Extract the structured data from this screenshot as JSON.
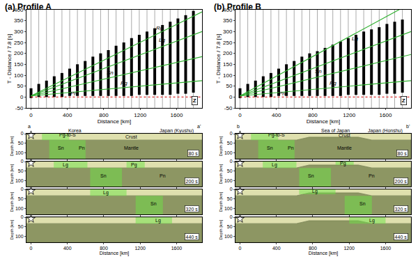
{
  "chart_data": [
    {
      "type": "record_section",
      "title": "(a) Profile A",
      "x_label": "Distance [km]",
      "y_label": "T - Distance / 7.8 [s]",
      "xlim": [
        -50,
        1880
      ],
      "xticks": [
        0,
        400,
        800,
        1200,
        1600
      ],
      "ylim": [
        -50,
        400
      ],
      "yticks": [
        -50,
        0,
        50,
        100,
        150,
        200,
        250,
        300,
        350,
        400
      ],
      "component": "Z",
      "traces": {
        "x": [
          0,
          85,
          170,
          255,
          340,
          425,
          510,
          595,
          680,
          765,
          850,
          935,
          1020,
          1105,
          1190,
          1275,
          1360,
          1445,
          1530,
          1615,
          1700,
          1785
        ],
        "onset": [
          -5,
          0,
          0,
          0,
          0,
          5,
          5,
          5,
          5,
          5,
          5,
          5,
          5,
          5,
          10,
          10,
          10,
          10,
          10,
          15,
          15,
          20
        ],
        "end": [
          40,
          60,
          75,
          95,
          110,
          130,
          150,
          165,
          185,
          200,
          215,
          235,
          250,
          270,
          285,
          300,
          315,
          330,
          345,
          360,
          375,
          395
        ]
      },
      "phase_lines": [
        {
          "x": [
            0,
            1880
          ],
          "y": [
            5,
            390
          ],
          "color": "#33b233",
          "line_style": "solid"
        },
        {
          "x": [
            0,
            1880
          ],
          "y": [
            5,
            300
          ],
          "color": "#33b233",
          "line_style": "solid"
        },
        {
          "x": [
            0,
            1880
          ],
          "y": [
            5,
            185
          ],
          "color": "#33b233",
          "line_style": "solid"
        },
        {
          "x": [
            0,
            1880
          ],
          "y": [
            5,
            75
          ],
          "color": "#33b233",
          "line_style": "solid"
        },
        {
          "x": [
            0,
            1880
          ],
          "y": [
            0,
            0
          ],
          "color": "#e03030",
          "line_style": "dot"
        }
      ],
      "labels": [
        {
          "text": "Rg",
          "x": 1420,
          "y": 315
        },
        {
          "text": "Lg",
          "x": 1440,
          "y": 262
        },
        {
          "text": "Sn",
          "x": 870,
          "y": 110
        },
        {
          "text": "Pg",
          "x": 1020,
          "y": 62
        },
        {
          "text": "Pn",
          "x": 470,
          "y": 14
        }
      ]
    },
    {
      "type": "record_section",
      "title": "(b) Profile B",
      "x_label": "Distance [km]",
      "y_label": "T - Distance / 7.8 [s]",
      "xlim": [
        -50,
        1880
      ],
      "xticks": [
        0,
        400,
        800,
        1200,
        1600
      ],
      "ylim": [
        -50,
        400
      ],
      "yticks": [
        -50,
        0,
        50,
        100,
        150,
        200,
        250,
        300,
        350,
        400
      ],
      "component": "Z",
      "traces": {
        "x": [
          0,
          85,
          170,
          255,
          340,
          425,
          510,
          595,
          680,
          765,
          850,
          935,
          1020,
          1105,
          1190,
          1275,
          1360,
          1445,
          1530,
          1615,
          1700,
          1785
        ],
        "onset": [
          -5,
          0,
          0,
          0,
          0,
          5,
          5,
          5,
          5,
          5,
          5,
          5,
          5,
          5,
          10,
          10,
          10,
          10,
          10,
          15,
          15,
          20
        ],
        "end": [
          40,
          60,
          75,
          95,
          110,
          130,
          150,
          165,
          185,
          200,
          210,
          225,
          240,
          255,
          270,
          285,
          300,
          310,
          320,
          335,
          345,
          355
        ]
      },
      "phase_lines": [
        {
          "x": [
            0,
            1880
          ],
          "y": [
            5,
            430
          ],
          "color": "#33b233",
          "line_style": "solid"
        },
        {
          "x": [
            0,
            1880
          ],
          "y": [
            5,
            300
          ],
          "color": "#33b233",
          "line_style": "solid"
        },
        {
          "x": [
            0,
            1880
          ],
          "y": [
            5,
            195
          ],
          "color": "#33b233",
          "line_style": "solid"
        },
        {
          "x": [
            0,
            1880
          ],
          "y": [
            5,
            75
          ],
          "color": "#33b233",
          "line_style": "solid"
        },
        {
          "x": [
            0,
            1880
          ],
          "y": [
            0,
            0
          ],
          "color": "#e03030",
          "line_style": "dot"
        }
      ],
      "labels": [
        {
          "text": "Lg",
          "x": 1260,
          "y": 268
        },
        {
          "text": "Sn",
          "x": 860,
          "y": 118
        },
        {
          "text": "Pg",
          "x": 1020,
          "y": 62
        },
        {
          "text": "Pn",
          "x": 460,
          "y": 14
        }
      ]
    },
    {
      "type": "snapshots",
      "profile_ends": [
        "a",
        "a'"
      ],
      "places": [
        {
          "text": "Korea",
          "x": 480
        },
        {
          "text": "Japan (Kyushu)",
          "x": 1600
        }
      ],
      "x_label": "Distance [km]",
      "y_label": "Depth [km]",
      "xlim": [
        -50,
        1880
      ],
      "xticks": [
        0,
        400,
        800,
        1200,
        1600
      ],
      "ylim": [
        130,
        0
      ],
      "yticks": [
        0,
        50,
        100
      ],
      "moho": {
        "x": [
          -50,
          1880
        ],
        "depth": [
          33,
          33
        ]
      },
      "source": {
        "x": 0,
        "depth": 8
      },
      "frames": [
        {
          "time": "80 s",
          "energy": [
            {
              "x": [
                120,
                420
              ],
              "depth": [
                0,
                33
              ]
            },
            {
              "x": [
                200,
                600
              ],
              "depth": [
                33,
                130
              ]
            }
          ],
          "labels": [
            {
              "text": "Pg-to-S",
              "x": 400,
              "depth": 9
            },
            {
              "text": "Sn",
              "x": 330,
              "depth": 75
            },
            {
              "text": "Pn",
              "x": 560,
              "depth": 75
            },
            {
              "text": "Crust",
              "x": 1100,
              "depth": 17
            },
            {
              "text": "Mantle",
              "x": 1100,
              "depth": 75
            }
          ]
        },
        {
          "time": "200 s",
          "energy": [
            {
              "x": [
                250,
                620
              ],
              "depth": [
                0,
                33
              ]
            },
            {
              "x": [
                650,
                1000
              ],
              "depth": [
                33,
                130
              ]
            },
            {
              "x": [
                1050,
                1250
              ],
              "depth": [
                0,
                33
              ]
            }
          ],
          "labels": [
            {
              "text": "Lg",
              "x": 380,
              "depth": 17
            },
            {
              "text": "Sn",
              "x": 800,
              "depth": 75
            },
            {
              "text": "Pg",
              "x": 1130,
              "depth": 17
            },
            {
              "text": "Pn",
              "x": 1450,
              "depth": 75
            }
          ]
        },
        {
          "time": "320 s",
          "energy": [
            {
              "x": [
                650,
                1050
              ],
              "depth": [
                0,
                33
              ]
            },
            {
              "x": [
                1150,
                1450
              ],
              "depth": [
                33,
                130
              ]
            }
          ],
          "labels": [
            {
              "text": "Lg",
              "x": 820,
              "depth": 17
            },
            {
              "text": "Sn",
              "x": 1350,
              "depth": 75
            }
          ]
        },
        {
          "time": "440 s",
          "energy": [
            {
              "x": [
                1150,
                1550
              ],
              "depth": [
                0,
                33
              ]
            }
          ],
          "labels": [
            {
              "text": "Lg",
              "x": 1400,
              "depth": 17
            }
          ]
        }
      ]
    },
    {
      "type": "snapshots",
      "profile_ends": [
        "b",
        "b'"
      ],
      "places": [
        {
          "text": "Sea of Japan",
          "x": 1050
        },
        {
          "text": "Japan (Honshu)",
          "x": 1600
        }
      ],
      "x_label": "Distance [km]",
      "y_label": "Depth [km]",
      "xlim": [
        -50,
        1880
      ],
      "xticks": [
        0,
        400,
        800,
        1200,
        1600
      ],
      "ylim": [
        130,
        0
      ],
      "yticks": [
        0,
        50,
        100
      ],
      "moho": {
        "x": [
          -50,
          620,
          760,
          1300,
          1450,
          1880
        ],
        "depth": [
          33,
          33,
          18,
          18,
          33,
          33
        ]
      },
      "source": {
        "x": 0,
        "depth": 8
      },
      "frames": [
        {
          "time": "80 s",
          "energy": [
            {
              "x": [
                120,
                420
              ],
              "depth": [
                0,
                33
              ]
            },
            {
              "x": [
                200,
                600
              ],
              "depth": [
                33,
                130
              ]
            }
          ],
          "labels": [
            {
              "text": "Pg-to-S",
              "x": 400,
              "depth": 9
            },
            {
              "text": "Sn",
              "x": 330,
              "depth": 75
            },
            {
              "text": "Pn",
              "x": 560,
              "depth": 75
            },
            {
              "text": "Crust",
              "x": 1150,
              "depth": 10
            },
            {
              "text": "Mantle",
              "x": 1150,
              "depth": 75
            }
          ]
        },
        {
          "time": "200 s",
          "energy": [
            {
              "x": [
                250,
                620
              ],
              "depth": [
                0,
                33
              ]
            },
            {
              "x": [
                650,
                1000
              ],
              "depth": [
                33,
                130
              ]
            },
            {
              "x": [
                1050,
                1250
              ],
              "depth": [
                0,
                18
              ]
            }
          ],
          "labels": [
            {
              "text": "Lg",
              "x": 380,
              "depth": 17
            },
            {
              "text": "Sn",
              "x": 780,
              "depth": 75
            },
            {
              "text": "Pg",
              "x": 1130,
              "depth": 10
            },
            {
              "text": "Pn",
              "x": 1450,
              "depth": 75
            }
          ]
        },
        {
          "time": "320 s",
          "energy": [
            {
              "x": [
                650,
                1050
              ],
              "depth": [
                0,
                25
              ]
            },
            {
              "x": [
                1150,
                1450
              ],
              "depth": [
                33,
                130
              ]
            }
          ],
          "labels": [
            {
              "text": "Lg",
              "x": 820,
              "depth": 12
            },
            {
              "text": "Sn",
              "x": 1350,
              "depth": 75
            }
          ]
        },
        {
          "time": "440 s",
          "energy": [
            {
              "x": [
                1200,
                1600
              ],
              "depth": [
                0,
                33
              ]
            }
          ],
          "labels": [
            {
              "text": "Lg",
              "x": 1450,
              "depth": 17
            }
          ]
        }
      ]
    }
  ]
}
